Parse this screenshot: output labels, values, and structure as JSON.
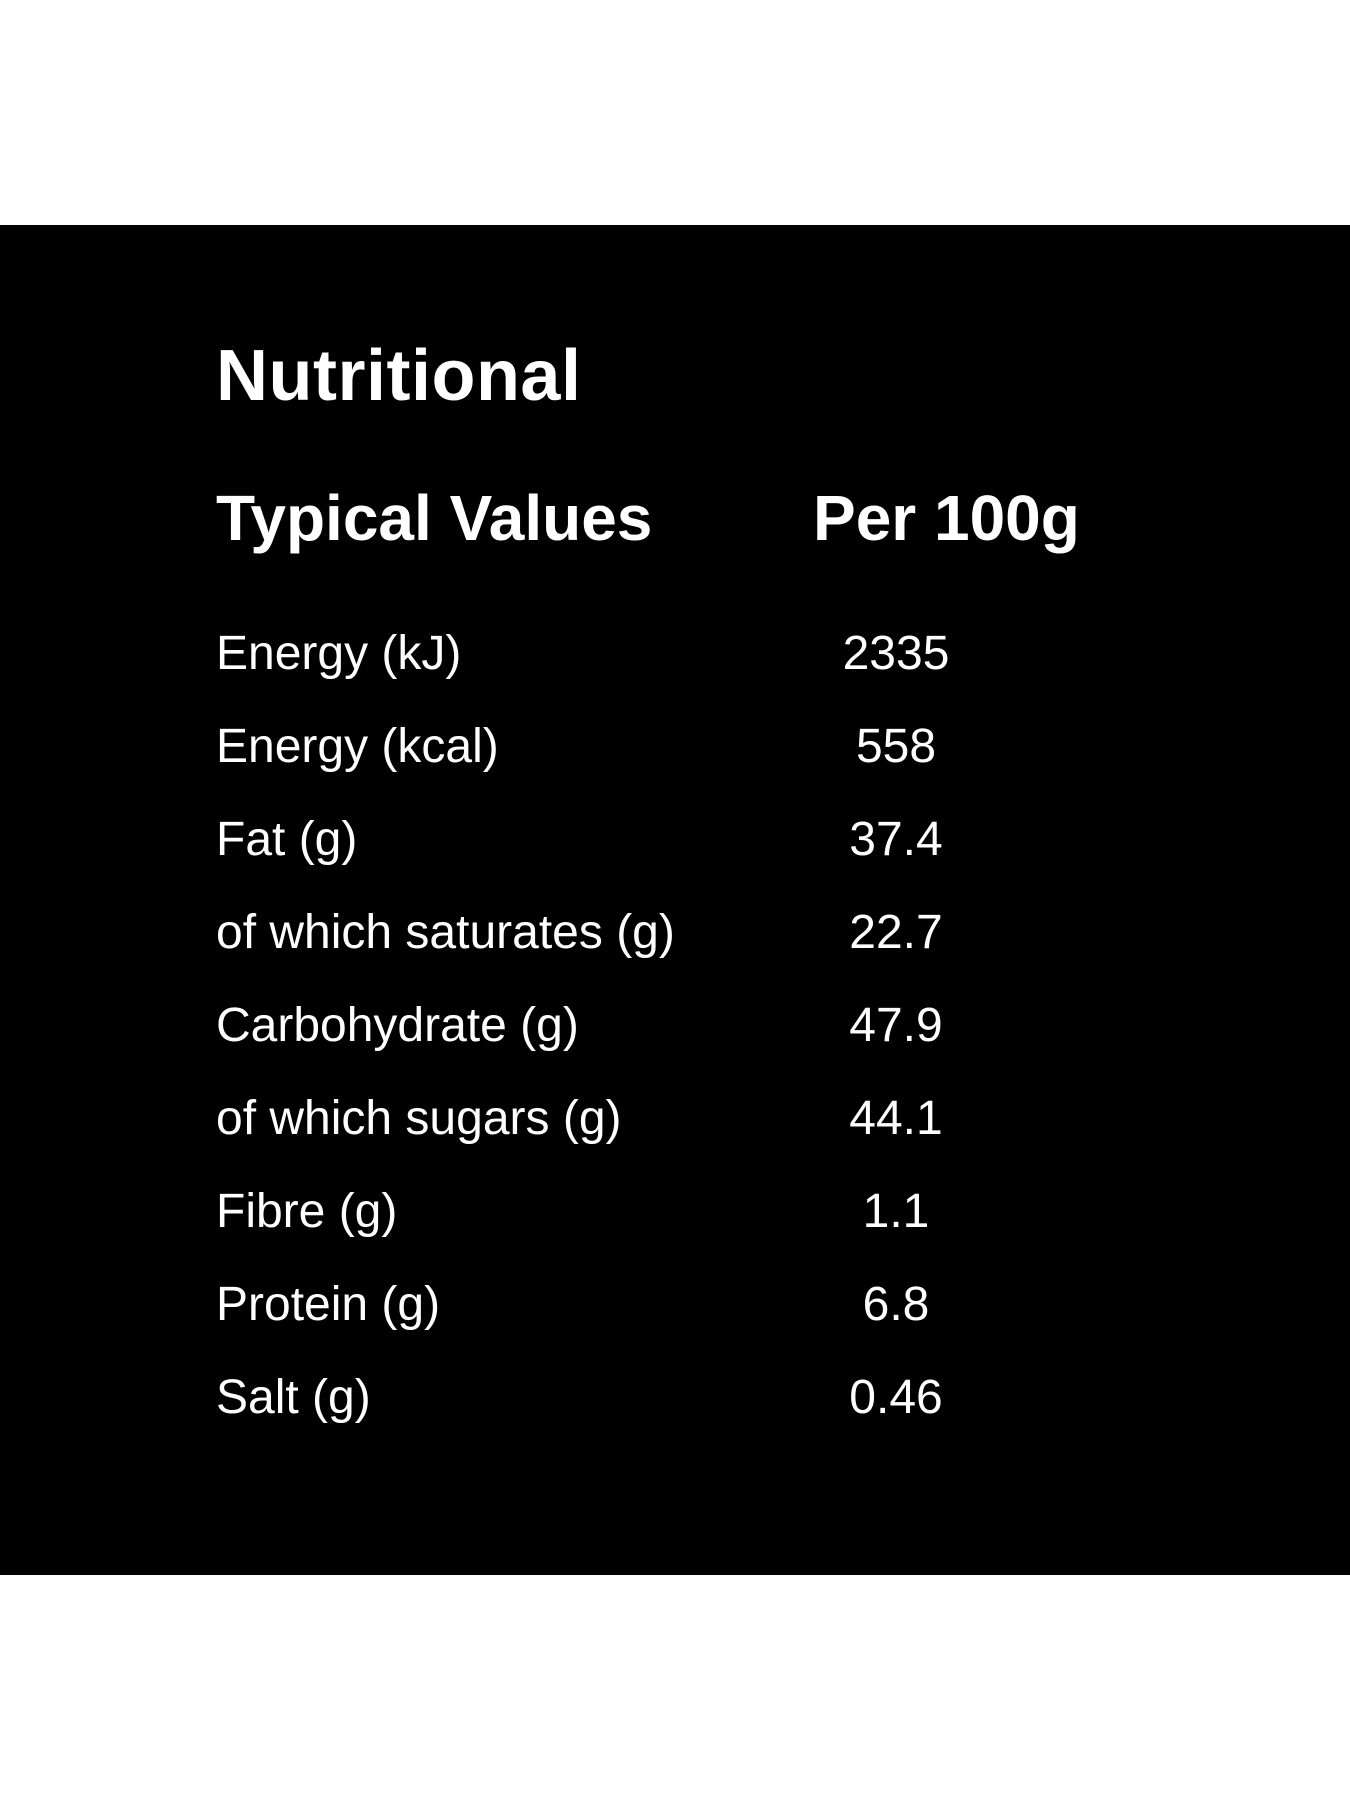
{
  "panel": {
    "background": "#000000",
    "text_color": "#ffffff"
  },
  "title": "Nutritional",
  "header": {
    "label": "Typical Values",
    "per": "Per 100g"
  },
  "rows": [
    {
      "name": "Energy (kJ)",
      "value": "2335"
    },
    {
      "name": "Energy (kcal)",
      "value": "558"
    },
    {
      "name": "Fat (g)",
      "value": "37.4"
    },
    {
      "name": "of which saturates (g)",
      "value": "22.7"
    },
    {
      "name": "Carbohydrate (g)",
      "value": "47.9"
    },
    {
      "name": "of which sugars (g)",
      "value": "44.1"
    },
    {
      "name": "Fibre (g)",
      "value": "1.1"
    },
    {
      "name": "Protein (g)",
      "value": "6.8"
    },
    {
      "name": "Salt (g)",
      "value": "0.46"
    }
  ]
}
